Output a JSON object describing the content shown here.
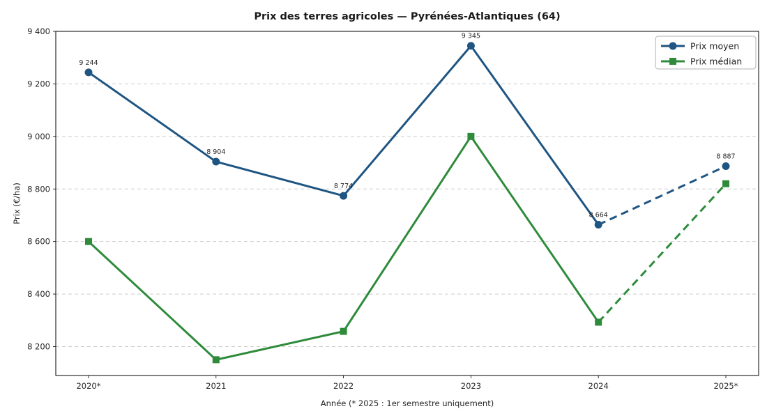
{
  "chart_data": {
    "type": "line",
    "title": "Prix des terres agricoles — Pyrénées-Atlantiques (64)",
    "xlabel": "Année (* 2025 : 1er semestre uniquement)",
    "ylabel": "Prix (€/ha)",
    "categories": [
      "2020*",
      "2021",
      "2022",
      "2023",
      "2024",
      "2025*"
    ],
    "series": [
      {
        "name": "Prix moyen",
        "color": "#1f5582",
        "marker": "circle",
        "values": [
          9244,
          8904,
          8774,
          9345,
          8664,
          8887
        ],
        "point_labels": [
          "9 244",
          "8 904",
          "8 774",
          "9 345",
          "8 664",
          "8 887"
        ],
        "dashed_last_segment": true
      },
      {
        "name": "Prix médian",
        "color": "#2e8b3a",
        "marker": "square",
        "values": [
          8600,
          8150,
          8258,
          9000,
          8293,
          8820
        ],
        "point_labels": [],
        "dashed_last_segment": true
      }
    ],
    "y_ticks": [
      8200,
      8400,
      8600,
      8800,
      9000,
      9200,
      9400
    ],
    "y_tick_labels": [
      "8 200",
      "8 400",
      "8 600",
      "8 800",
      "9 000",
      "9 200",
      "9 400"
    ],
    "ylim": [
      8090,
      9400
    ],
    "grid": "horizontal-dashed",
    "grid_color": "#cccccc",
    "label_color": "#2c6399",
    "legend": {
      "position": "top-right",
      "entries": [
        "Prix moyen",
        "Prix médian"
      ]
    }
  }
}
